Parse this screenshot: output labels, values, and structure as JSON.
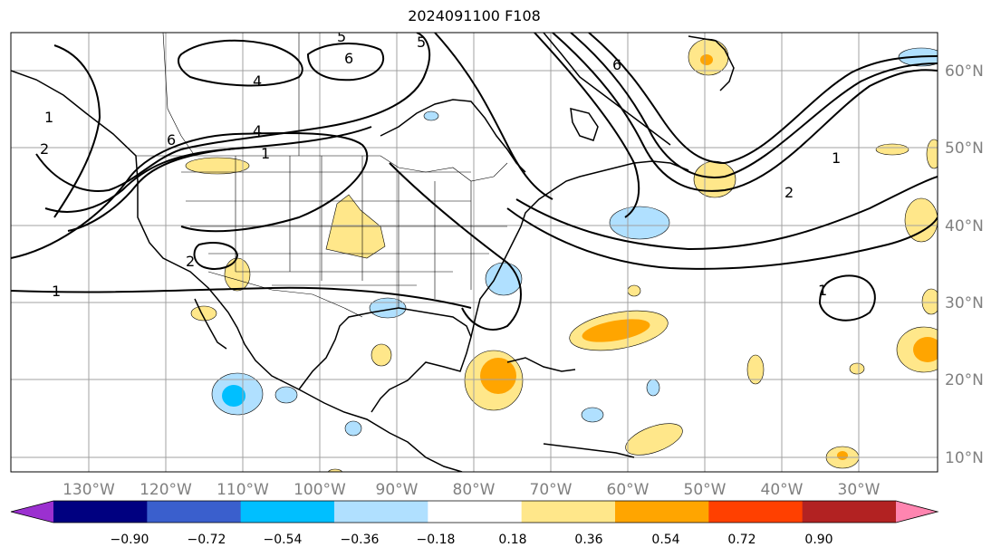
{
  "title": "2024091100 F108",
  "longitude_labels": [
    "130°W",
    "120°W",
    "110°W",
    "100°W",
    "90°W",
    "80°W",
    "70°W",
    "60°W",
    "50°W",
    "40°W",
    "30°W"
  ],
  "latitude_labels": [
    "60°N",
    "50°N",
    "40°N",
    "30°N",
    "20°N",
    "10°N"
  ],
  "colorbar": {
    "tick_labels": [
      "−0.90",
      "−0.72",
      "−0.54",
      "−0.36",
      "−0.18",
      "0.18",
      "0.36",
      "0.54",
      "0.72",
      "0.90"
    ],
    "colors": [
      "#9b30d0",
      "#000080",
      "#3a5fcd",
      "#00bfff",
      "#b0e0ff",
      "#ffffff",
      "#ffe78a",
      "#ffa500",
      "#ff4000",
      "#b22222",
      "#ff85b0"
    ]
  },
  "contour_labels": [
    "1",
    "2",
    "4",
    "6",
    "1",
    "4",
    "5",
    "6",
    "5",
    "6",
    "2",
    "1",
    "1",
    "2",
    "1"
  ],
  "anomaly_colors": {
    "light_yellow": "#ffe78a",
    "orange": "#ffa500",
    "light_blue": "#b0e0ff",
    "blue": "#00bfff"
  }
}
